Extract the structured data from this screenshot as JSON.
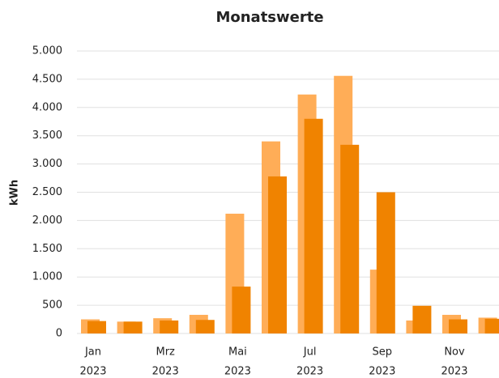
{
  "chart_data": {
    "type": "bar",
    "title": "Monatswerte",
    "y_label": "kWh",
    "categories": [
      [
        "Jan",
        "2023"
      ],
      null,
      [
        "Mrz",
        "2023"
      ],
      null,
      [
        "Mai",
        "2023"
      ],
      null,
      [
        "Jul",
        "2023"
      ],
      null,
      [
        "Sep",
        "2023"
      ],
      null,
      [
        "Nov",
        "2023"
      ],
      null
    ],
    "series": [
      {
        "color": "#ffad57",
        "values": [
          250,
          210,
          270,
          330,
          2120,
          3400,
          4230,
          4560,
          1130,
          230,
          330,
          280
        ]
      },
      {
        "color": "#f08300",
        "values": [
          220,
          210,
          230,
          240,
          830,
          2780,
          3800,
          3340,
          2500,
          490,
          250,
          260
        ]
      }
    ],
    "ylim": [
      0,
      5000
    ],
    "yticks": [
      0,
      {
        "value": 500,
        "label": "500"
      },
      {
        "value": 1000,
        "label": "1.000"
      },
      {
        "value": 1500,
        "label": "1.500"
      },
      {
        "value": 2000,
        "label": "2.000"
      },
      {
        "value": 2500,
        "label": "2.500"
      },
      {
        "value": 3000,
        "label": "3.000"
      },
      {
        "value": 3500,
        "label": "3.500"
      },
      {
        "value": 4000,
        "label": "4.000"
      },
      {
        "value": 4500,
        "label": "4.500"
      },
      {
        "value": 5000,
        "label": "5.000"
      }
    ],
    "grid": true
  }
}
